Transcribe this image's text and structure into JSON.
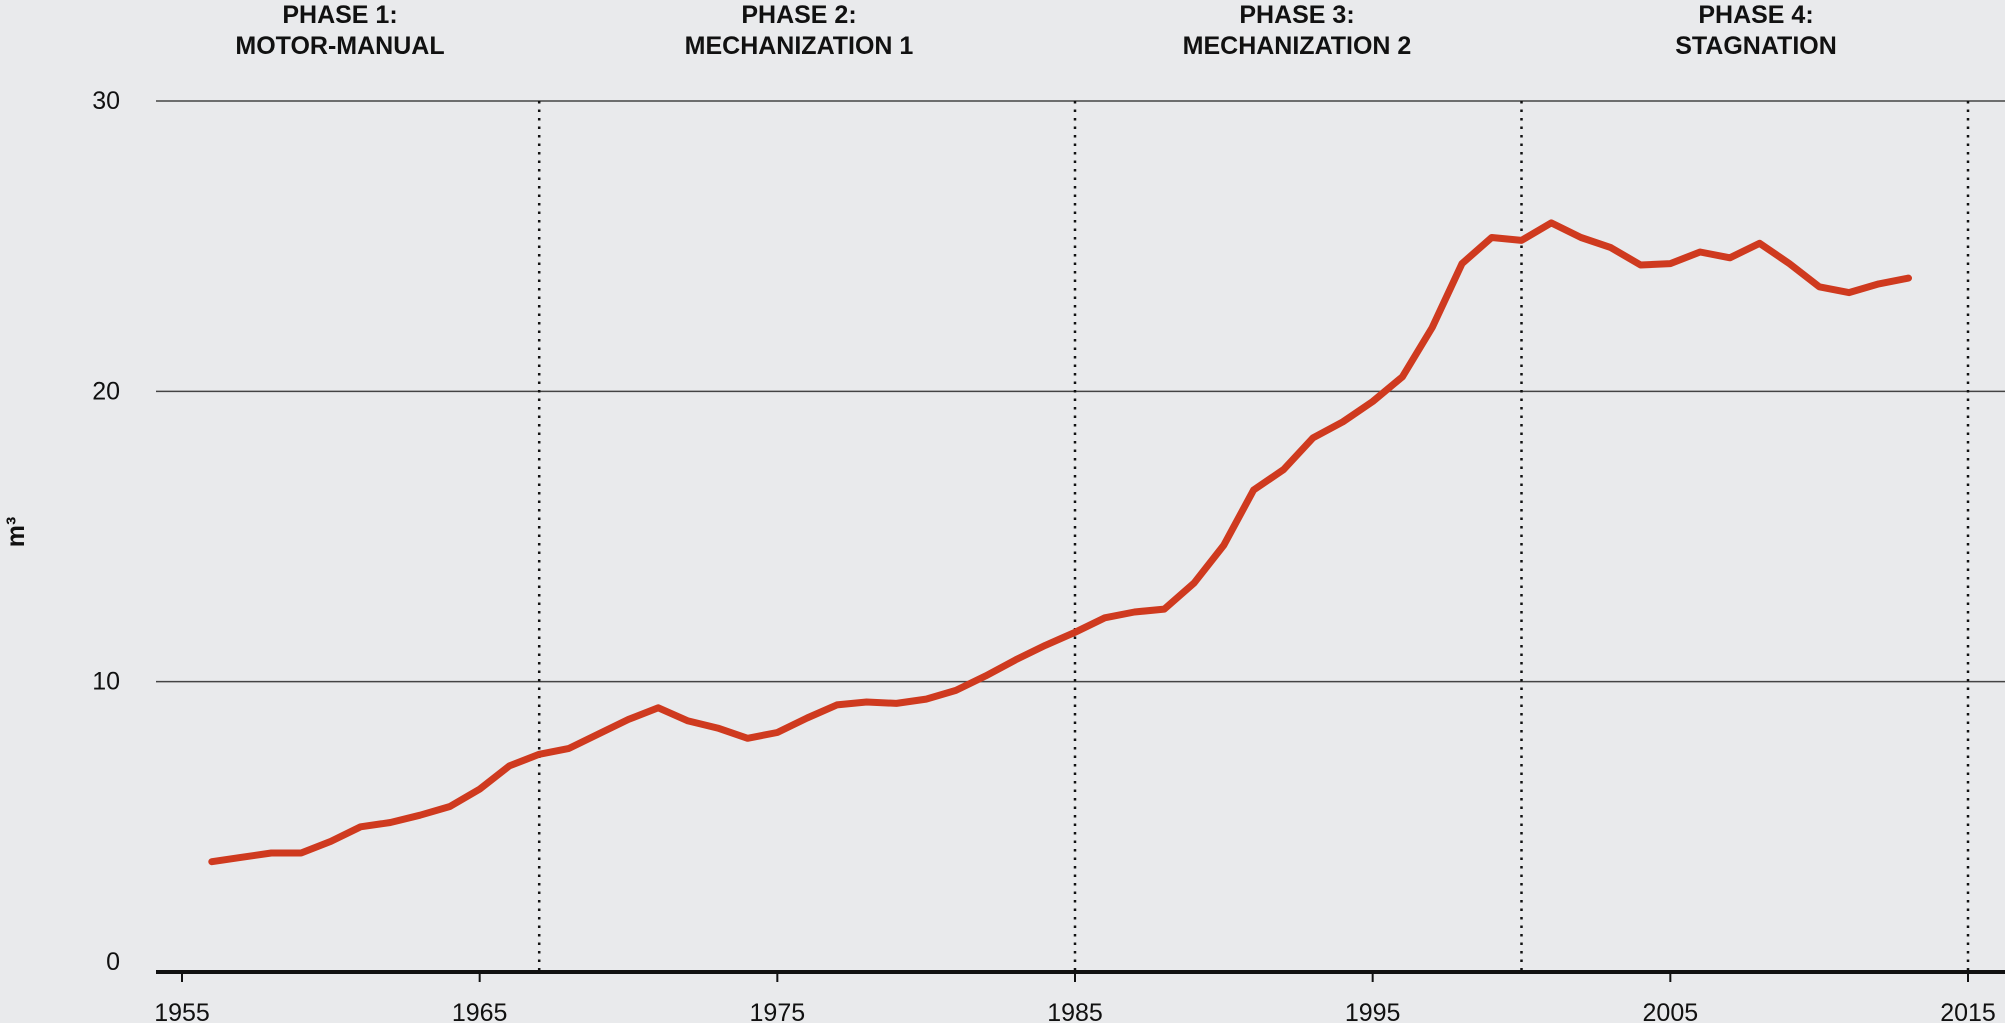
{
  "chart_data": {
    "type": "line",
    "title": "",
    "xlabel": "",
    "ylabel": "m³",
    "xlim": [
      1955,
      2016
    ],
    "ylim": [
      0,
      30
    ],
    "yticks": [
      0,
      10,
      20,
      30
    ],
    "xticks": [
      1955,
      1965,
      1975,
      1985,
      1995,
      2005,
      2015
    ],
    "grid": "horizontal",
    "line_color": "#cf3a1f",
    "phases": [
      {
        "line1": "PHASE 1:",
        "line2": "MOTOR-MANUAL",
        "start": 1955,
        "end": 1967
      },
      {
        "line1": "PHASE 2:",
        "line2": "MECHANIZATION 1",
        "start": 1967,
        "end": 1985
      },
      {
        "line1": "PHASE 3:",
        "line2": "MECHANIZATION 2",
        "start": 1985,
        "end": 2000
      },
      {
        "line1": "PHASE 4:",
        "line2": "STAGNATION",
        "start": 2000,
        "end": 2015
      }
    ],
    "phase_boundaries": [
      1967,
      1985,
      2000,
      2015
    ],
    "series": [
      {
        "name": "m³",
        "x": [
          1956,
          1957,
          1958,
          1959,
          1960,
          1961,
          1962,
          1963,
          1964,
          1965,
          1966,
          1967,
          1968,
          1969,
          1970,
          1971,
          1972,
          1973,
          1974,
          1975,
          1976,
          1977,
          1978,
          1979,
          1980,
          1981,
          1982,
          1983,
          1984,
          1985,
          1986,
          1987,
          1988,
          1989,
          1990,
          1991,
          1992,
          1993,
          1994,
          1995,
          1996,
          1997,
          1998,
          1999,
          2000,
          2001,
          2002,
          2003,
          2004,
          2005,
          2006,
          2007,
          2008,
          2009,
          2010,
          2011,
          2012,
          2013
        ],
        "values": [
          3.8,
          3.95,
          4.1,
          4.1,
          4.5,
          5.0,
          5.15,
          5.4,
          5.7,
          6.3,
          7.1,
          7.5,
          7.7,
          8.2,
          8.7,
          9.1,
          8.65,
          8.4,
          8.05,
          8.25,
          8.75,
          9.2,
          9.3,
          9.25,
          9.4,
          9.7,
          10.2,
          10.75,
          11.25,
          11.7,
          12.2,
          12.4,
          12.5,
          13.4,
          14.7,
          16.6,
          17.3,
          18.4,
          18.95,
          19.65,
          20.5,
          22.2,
          24.4,
          25.3,
          25.2,
          25.8,
          25.3,
          24.95,
          24.35,
          24.4,
          24.8,
          24.6,
          25.1,
          24.4,
          23.6,
          23.4,
          23.7,
          23.9
        ]
      }
    ]
  }
}
